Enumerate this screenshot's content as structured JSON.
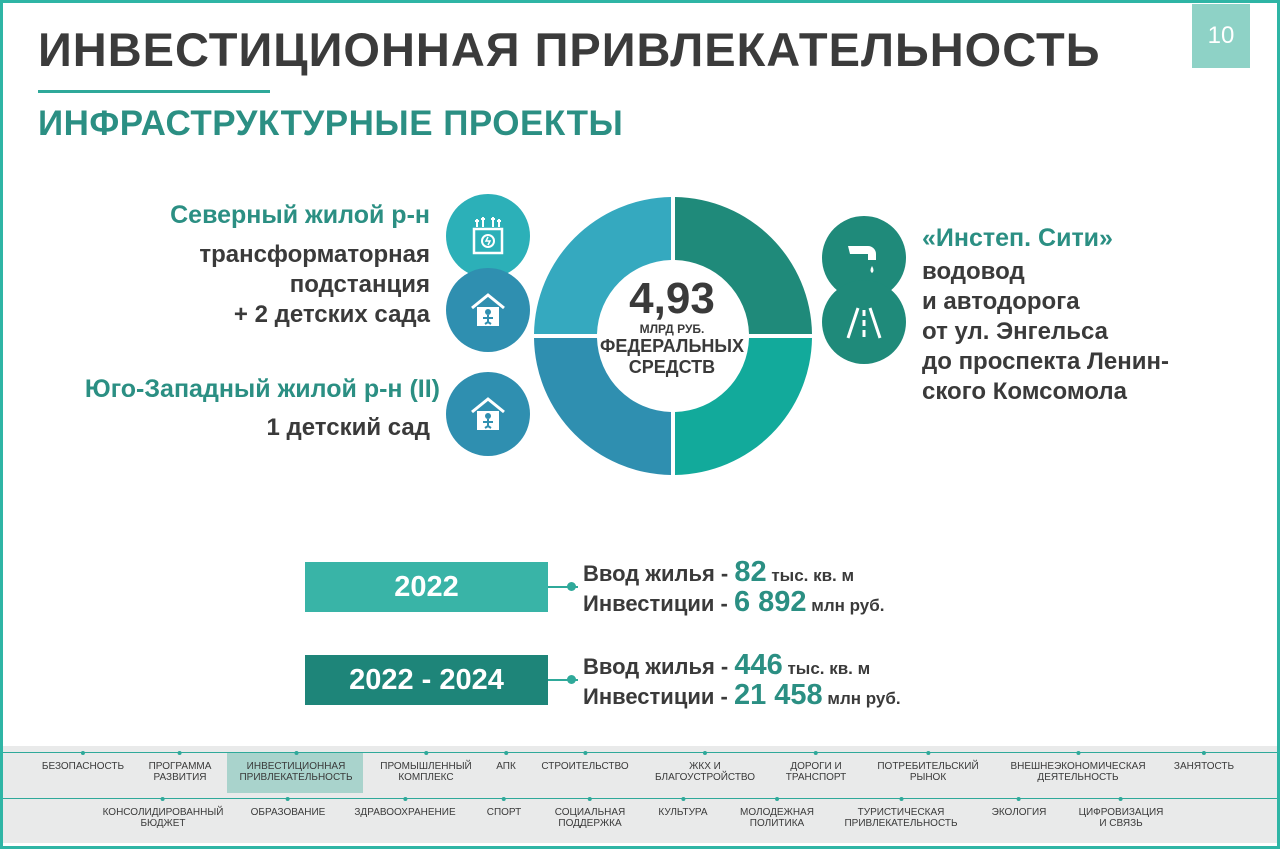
{
  "header": {
    "title": "ИНВЕСТИЦИОННАЯ ПРИВЛЕКАТЕЛЬНОСТЬ",
    "page_number": "10",
    "subtitle": "ИНФРАСТРУКТУРНЫЕ ПРОЕКТЫ"
  },
  "left": {
    "north_title": "Северный жилой р-н",
    "north_lines": [
      "трансформаторная",
      "подстанция",
      "+ 2 детских сада"
    ],
    "southwest_title": "Юго-Западный жилой р-н (II)",
    "southwest_line": "1 детский сад"
  },
  "center": {
    "value": "4,93",
    "unit": "МЛРД РУБ.",
    "line1": "ФЕДЕРАЛЬНЫХ",
    "line2": "СРЕДСТВ"
  },
  "right": {
    "title": "«Инстеп. Сити»",
    "lines": [
      "водовод",
      "и автодорога",
      "от ул. Энгельса",
      "до проспекта Ленин-",
      "ского Комсомола"
    ]
  },
  "stats": [
    {
      "year": "2022",
      "housing_label": "Ввод жилья - ",
      "housing_value": "82",
      "housing_unit": " тыс. кв. м",
      "invest_label": "Инвестиции - ",
      "invest_value": "6 892",
      "invest_unit": " млн руб."
    },
    {
      "year": "2022 - 2024",
      "housing_label": "Ввод жилья - ",
      "housing_value": "446",
      "housing_unit": " тыс. кв. м",
      "invest_label": "Инвестиции - ",
      "invest_value": "21 458",
      "invest_unit": " млн руб."
    }
  ],
  "nav": {
    "row1": [
      [
        "БЕЗОПАСНОСТЬ"
      ],
      [
        "ПРОГРАММА",
        "РАЗВИТИЯ"
      ],
      [
        "ИНВЕСТИЦИОННАЯ",
        "ПРИВЛЕКАТЕЛЬНОСТЬ"
      ],
      [
        "ПРОМЫШЛЕННЫЙ",
        "КОМПЛЕКС"
      ],
      [
        "АПК"
      ],
      [
        "СТРОИТЕЛЬСТВО"
      ],
      [
        "ЖКХ И",
        "БЛАГОУСТРОЙСТВО"
      ],
      [
        "ДОРОГИ И",
        "ТРАНСПОРТ"
      ],
      [
        "ПОТРЕБИТЕЛЬСКИЙ",
        "РЫНОК"
      ],
      [
        "ВНЕШНЕЭКОНОМИЧЕСКАЯ",
        "ДЕЯТЕЛЬНОСТЬ"
      ],
      [
        "ЗАНЯТОСТЬ"
      ]
    ],
    "row2": [
      [
        "КОНСОЛИДИРОВАННЫЙ",
        "БЮДЖЕТ"
      ],
      [
        "ОБРАЗОВАНИЕ"
      ],
      [
        "ЗДРАВООХРАНЕНИЕ"
      ],
      [
        "СПОРТ"
      ],
      [
        "СОЦИАЛЬНАЯ",
        "ПОДДЕРЖКА"
      ],
      [
        "КУЛЬТУРА"
      ],
      [
        "МОЛОДЕЖНАЯ",
        "ПОЛИТИКА"
      ],
      [
        "ТУРИСТИЧЕСКАЯ",
        "ПРИВЛЕКАТЕЛЬНОСТЬ"
      ],
      [
        "ЭКОЛОГИЯ"
      ],
      [
        "ЦИФРОВИЗАЦИЯ",
        "И СВЯЗЬ"
      ]
    ],
    "active": "ИНВЕСТИЦИОННАЯ ПРИВЛЕКАТЕЛЬНОСТЬ"
  },
  "colors": {
    "accent": "#2fa99a",
    "title_green": "#2b8f83",
    "segment_top_left": "#35a9bf",
    "segment_top_right": "#1f8a7a",
    "segment_bottom_right": "#12aa9b",
    "segment_bottom_left": "#2f8fb0",
    "year_2022": "#39b4a7",
    "year_2022_2024": "#1e8579"
  },
  "icons": [
    "transformer-substation-icon",
    "kindergarten-icon",
    "water-pipe-icon",
    "road-icon"
  ]
}
